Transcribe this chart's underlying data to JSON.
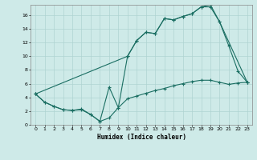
{
  "xlabel": "Humidex (Indice chaleur)",
  "bg_color": "#ceeae8",
  "grid_color": "#afd4d2",
  "line_color": "#1a6e62",
  "xlim": [
    -0.5,
    23.5
  ],
  "ylim": [
    0,
    17.5
  ],
  "xticks": [
    0,
    1,
    2,
    3,
    4,
    5,
    6,
    7,
    8,
    9,
    10,
    11,
    12,
    13,
    14,
    15,
    16,
    17,
    18,
    19,
    20,
    21,
    22,
    23
  ],
  "yticks": [
    0,
    2,
    4,
    6,
    8,
    10,
    12,
    14,
    16
  ],
  "line1_x": [
    0,
    1,
    2,
    3,
    4,
    5,
    6,
    7,
    8,
    9,
    10,
    11,
    12,
    13,
    14,
    15,
    16,
    17,
    18,
    19,
    20,
    21,
    22,
    23
  ],
  "line1_y": [
    4.5,
    3.3,
    2.7,
    2.2,
    2.1,
    2.2,
    1.5,
    0.5,
    1.0,
    2.5,
    3.8,
    4.2,
    4.6,
    5.0,
    5.3,
    5.7,
    6.0,
    6.3,
    6.5,
    6.5,
    6.2,
    5.9,
    6.1,
    6.2
  ],
  "line2_x": [
    0,
    1,
    2,
    3,
    4,
    5,
    6,
    7,
    8,
    9,
    10,
    11,
    12,
    13,
    14,
    15,
    16,
    17,
    18,
    19,
    20,
    21,
    22,
    23
  ],
  "line2_y": [
    4.5,
    3.3,
    2.7,
    2.2,
    2.1,
    2.3,
    1.5,
    0.5,
    5.5,
    2.5,
    10.0,
    12.3,
    13.5,
    13.3,
    15.5,
    15.3,
    15.8,
    16.2,
    17.2,
    17.2,
    15.0,
    11.5,
    7.8,
    6.2
  ],
  "line3_x": [
    0,
    10,
    11,
    12,
    13,
    14,
    15,
    16,
    17,
    18,
    19,
    20,
    23
  ],
  "line3_y": [
    4.5,
    10.0,
    12.3,
    13.5,
    13.3,
    15.5,
    15.3,
    15.8,
    16.2,
    17.2,
    17.5,
    15.0,
    6.2
  ]
}
